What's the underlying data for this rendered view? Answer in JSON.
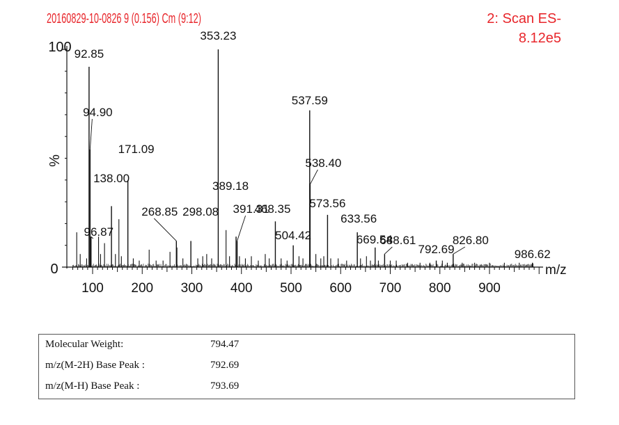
{
  "header": {
    "sample_id": "20160829-10-0826 9 (0.156) Cm (9:12)",
    "scan_mode": "2: Scan ES-",
    "intensity": "8.12e5"
  },
  "chart_data": {
    "type": "bar",
    "title": "20160829-10-0826 9 (0.156) Cm (9:12)",
    "xlabel": "m/z",
    "ylabel": "%",
    "xlim": [
      50,
      1000
    ],
    "ylim": [
      0,
      100
    ],
    "x_ticks": [
      100,
      200,
      300,
      400,
      500,
      600,
      700,
      800,
      900
    ],
    "y_ticks": [
      0,
      100
    ],
    "labeled_peaks": [
      {
        "mz": 92.85,
        "label": "92.85",
        "intensity": 92
      },
      {
        "mz": 94.9,
        "label": "94.90",
        "intensity": 54
      },
      {
        "mz": 96.87,
        "label": "96.87",
        "intensity": 14
      },
      {
        "mz": 138.0,
        "label": "138.00",
        "intensity": 28
      },
      {
        "mz": 171.09,
        "label": "171.09",
        "intensity": 40
      },
      {
        "mz": 268.85,
        "label": "268.85",
        "intensity": 12
      },
      {
        "mz": 298.08,
        "label": "298.08",
        "intensity": 12
      },
      {
        "mz": 353.23,
        "label": "353.23",
        "intensity": 100
      },
      {
        "mz": 389.18,
        "label": "389.18",
        "intensity": 14
      },
      {
        "mz": 391.31,
        "label": "391.31",
        "intensity": 12
      },
      {
        "mz": 468.35,
        "label": "468.35",
        "intensity": 21
      },
      {
        "mz": 504.42,
        "label": "504.42",
        "intensity": 10
      },
      {
        "mz": 537.59,
        "label": "537.59",
        "intensity": 72
      },
      {
        "mz": 538.4,
        "label": "538.40",
        "intensity": 38
      },
      {
        "mz": 573.56,
        "label": "573.56",
        "intensity": 24
      },
      {
        "mz": 633.56,
        "label": "633.56",
        "intensity": 16
      },
      {
        "mz": 669.54,
        "label": "669.54",
        "intensity": 9
      },
      {
        "mz": 688.61,
        "label": "688.61",
        "intensity": 6
      },
      {
        "mz": 792.69,
        "label": "792.69",
        "intensity": 3
      },
      {
        "mz": 826.8,
        "label": "826.80",
        "intensity": 6
      },
      {
        "mz": 986.62,
        "label": "986.62",
        "intensity": 2
      }
    ],
    "minor_peaks": [
      {
        "mz": 68,
        "intensity": 16
      },
      {
        "mz": 75,
        "intensity": 6
      },
      {
        "mz": 88,
        "intensity": 4
      },
      {
        "mz": 112,
        "intensity": 14
      },
      {
        "mz": 116,
        "intensity": 6
      },
      {
        "mz": 124,
        "intensity": 11
      },
      {
        "mz": 146,
        "intensity": 6
      },
      {
        "mz": 153,
        "intensity": 22
      },
      {
        "mz": 158,
        "intensity": 5
      },
      {
        "mz": 182,
        "intensity": 4
      },
      {
        "mz": 194,
        "intensity": 3
      },
      {
        "mz": 214,
        "intensity": 8
      },
      {
        "mz": 228,
        "intensity": 3
      },
      {
        "mz": 242,
        "intensity": 3
      },
      {
        "mz": 256,
        "intensity": 7
      },
      {
        "mz": 270,
        "intensity": 9
      },
      {
        "mz": 282,
        "intensity": 4
      },
      {
        "mz": 312,
        "intensity": 4
      },
      {
        "mz": 322,
        "intensity": 5
      },
      {
        "mz": 330,
        "intensity": 6
      },
      {
        "mz": 340,
        "intensity": 4
      },
      {
        "mz": 369,
        "intensity": 17
      },
      {
        "mz": 376,
        "intensity": 5
      },
      {
        "mz": 396,
        "intensity": 5
      },
      {
        "mz": 408,
        "intensity": 4
      },
      {
        "mz": 420,
        "intensity": 5
      },
      {
        "mz": 434,
        "intensity": 3
      },
      {
        "mz": 448,
        "intensity": 6
      },
      {
        "mz": 456,
        "intensity": 4
      },
      {
        "mz": 480,
        "intensity": 4
      },
      {
        "mz": 492,
        "intensity": 3
      },
      {
        "mz": 516,
        "intensity": 5
      },
      {
        "mz": 524,
        "intensity": 4
      },
      {
        "mz": 550,
        "intensity": 6
      },
      {
        "mz": 560,
        "intensity": 4
      },
      {
        "mz": 566,
        "intensity": 5
      },
      {
        "mz": 580,
        "intensity": 4
      },
      {
        "mz": 595,
        "intensity": 4
      },
      {
        "mz": 612,
        "intensity": 3
      },
      {
        "mz": 640,
        "intensity": 4
      },
      {
        "mz": 652,
        "intensity": 5
      },
      {
        "mz": 660,
        "intensity": 3
      },
      {
        "mz": 676,
        "intensity": 3
      },
      {
        "mz": 700,
        "intensity": 3
      },
      {
        "mz": 712,
        "intensity": 3
      },
      {
        "mz": 735,
        "intensity": 2
      },
      {
        "mz": 760,
        "intensity": 2
      },
      {
        "mz": 780,
        "intensity": 2
      },
      {
        "mz": 805,
        "intensity": 3
      },
      {
        "mz": 815,
        "intensity": 2
      },
      {
        "mz": 845,
        "intensity": 2
      },
      {
        "mz": 870,
        "intensity": 2
      },
      {
        "mz": 900,
        "intensity": 2
      },
      {
        "mz": 930,
        "intensity": 2
      },
      {
        "mz": 960,
        "intensity": 2
      }
    ]
  },
  "info": {
    "rows": [
      {
        "label": "Molecular Weight:",
        "value": "794.47"
      },
      {
        "label": "m/z(M-2H) Base Peak :",
        "value": "792.69"
      },
      {
        "label": "m/z(M-H) Base Peak :",
        "value": "793.69"
      }
    ]
  }
}
